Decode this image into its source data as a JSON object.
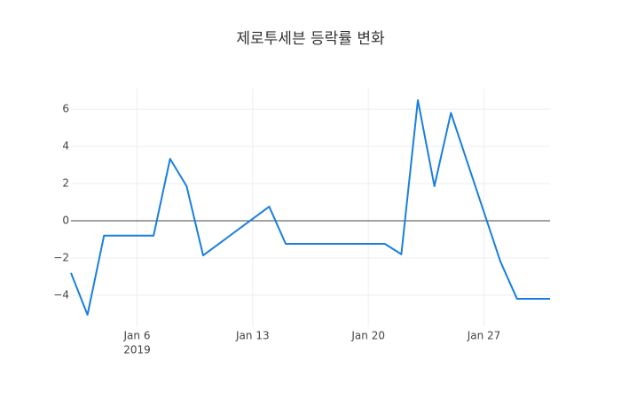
{
  "chart_data": {
    "type": "line",
    "title": "제로투세븐 등락률 변화",
    "x": [
      "2019-01-02",
      "2019-01-03",
      "2019-01-04",
      "2019-01-07",
      "2019-01-08",
      "2019-01-09",
      "2019-01-10",
      "2019-01-14",
      "2019-01-15",
      "2019-01-21",
      "2019-01-22",
      "2019-01-23",
      "2019-01-24",
      "2019-01-25",
      "2019-01-28",
      "2019-01-29",
      "2019-01-30",
      "2019-01-31"
    ],
    "values": [
      -2.8,
      -5.05,
      -0.8,
      -0.8,
      3.33,
      1.86,
      -1.86,
      0.76,
      -1.24,
      -1.24,
      -1.8,
      6.48,
      1.86,
      5.8,
      -2.2,
      -4.19,
      -4.19,
      -4.19
    ],
    "color": "#1a7fe0",
    "xlim": [
      "2019-01-02",
      "2019-01-31"
    ],
    "xticks": [
      {
        "value": "2019-01-06",
        "label": "Jan 6"
      },
      {
        "value": "2019-01-13",
        "label": "Jan 13"
      },
      {
        "value": "2019-01-20",
        "label": "Jan 20"
      },
      {
        "value": "2019-01-27",
        "label": "Jan 27"
      }
    ],
    "year_label": "2019",
    "ylim": [
      -5.67,
      7.1
    ],
    "yticks": [
      {
        "value": -4,
        "label": "−4"
      },
      {
        "value": -2,
        "label": "−2"
      },
      0,
      2,
      4,
      6
    ],
    "grid": true
  }
}
